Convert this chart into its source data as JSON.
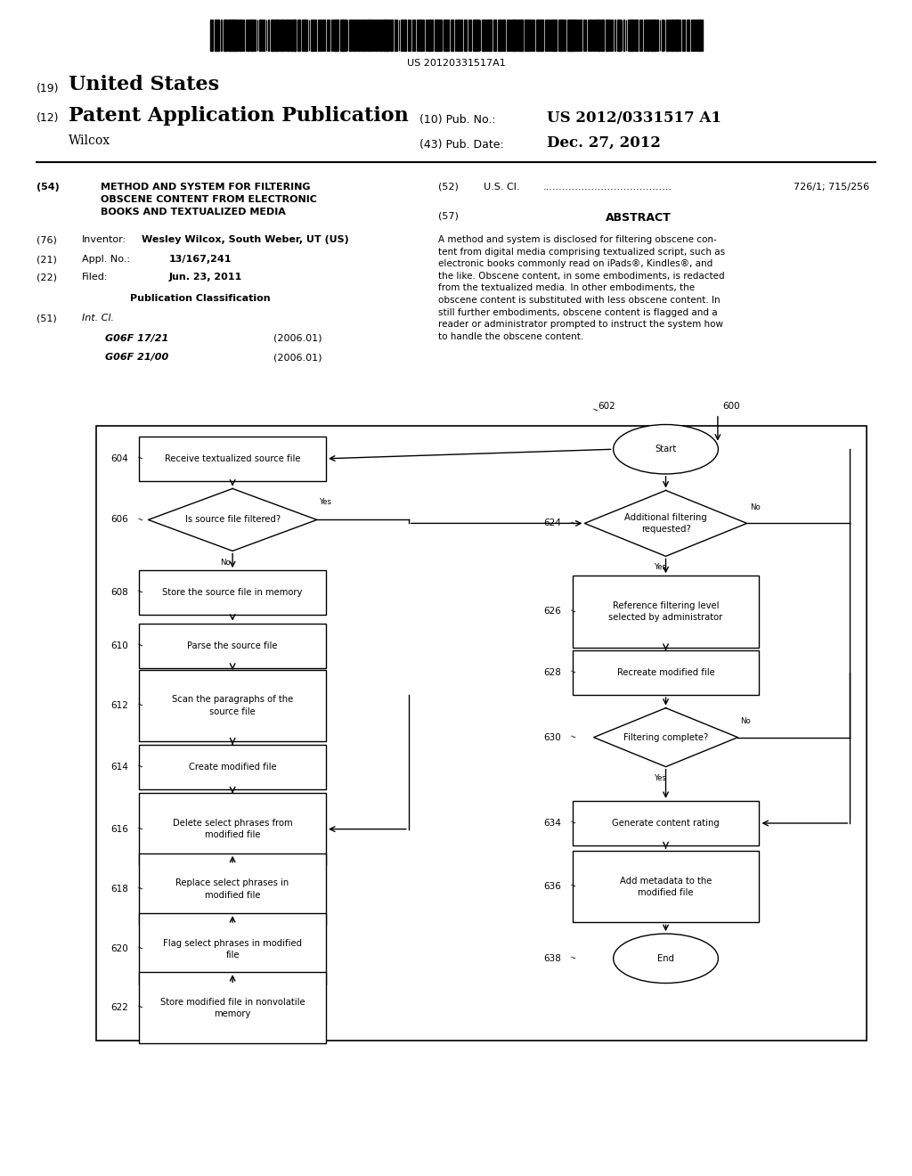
{
  "bg_color": "#ffffff",
  "barcode_text": "US 20120331517A1",
  "header": {
    "country_num": "(19)",
    "country": "United States",
    "type_num": "(12)",
    "type": "Patent Application Publication",
    "pub_num_label": "(10) Pub. No.:",
    "pub_num": "US 2012/0331517 A1",
    "inventor": "Wilcox",
    "date_label": "(43) Pub. Date:",
    "date": "Dec. 27, 2012"
  },
  "left_col": {
    "title_num": "(54)",
    "title": "METHOD AND SYSTEM FOR FILTERING\nOBSCENE CONTENT FROM ELECTRONIC\nBOOKS AND TEXTUALIZED MEDIA",
    "inventor_num": "(76)",
    "inventor_label": "Inventor:",
    "inventor_val": "Wesley Wilcox, South Weber, UT (US)",
    "appl_num": "(21)",
    "appl_label": "Appl. No.:",
    "appl_val": "13/167,241",
    "filed_num": "(22)",
    "filed_label": "Filed:",
    "filed_val": "Jun. 23, 2011",
    "pub_class_title": "Publication Classification",
    "int_cl_num": "(51)",
    "int_cl_label": "Int. Cl.",
    "int_cl_1": "G06F 17/21",
    "int_cl_1_date": "(2006.01)",
    "int_cl_2": "G06F 21/00",
    "int_cl_2_date": "(2006.01)"
  },
  "right_col": {
    "us_cl_num": "(52)",
    "us_cl_label": "U.S. Cl.",
    "us_cl_dots": "........................................",
    "us_cl_val": "726/1; 715/256",
    "abstract_num": "(57)",
    "abstract_title": "ABSTRACT",
    "abstract_text": "A method and system is disclosed for filtering obscene con-\ntent from digital media comprising textualized script, such as\nelectronic books commonly read on iPads®, Kindles®, and\nthe like. Obscene content, in some embodiments, is redacted\nfrom the textualized media. In other embodiments, the\nobscene content is substituted with less obscene content. In\nstill further embodiments, obscene content is flagged and a\nreader or administrator prompted to instruct the system how\nto handle the obscene content."
  }
}
